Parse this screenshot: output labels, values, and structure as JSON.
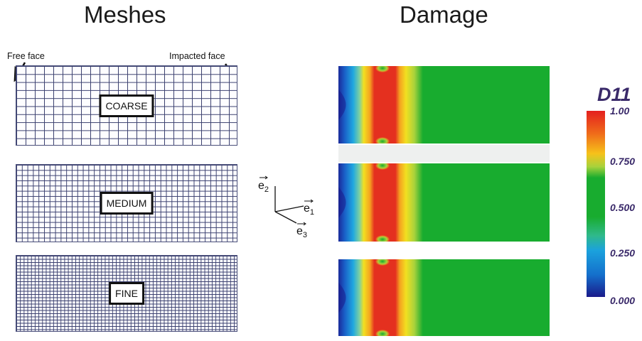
{
  "headers": {
    "meshes": "Meshes",
    "damage": "Damage"
  },
  "face_labels": {
    "free": "Free face",
    "impacted": "Impacted face"
  },
  "meshes": [
    {
      "label": "COARSE"
    },
    {
      "label": "MEDIUM"
    },
    {
      "label": "FINE"
    }
  ],
  "axes": {
    "e2": "e",
    "e2_sub": "2",
    "e1": "e",
    "e1_sub": "1",
    "e3": "e",
    "e3_sub": "3"
  },
  "colorbar": {
    "title": "D11",
    "ticks": [
      "1.00",
      "0.750",
      "0.500",
      "0.250",
      "0.000"
    ]
  },
  "colors": {
    "mesh_line": "#3c4170",
    "damage_high": "#e4201f",
    "damage_mid": "#18ac2f",
    "damage_low": "#1a1a8a"
  }
}
